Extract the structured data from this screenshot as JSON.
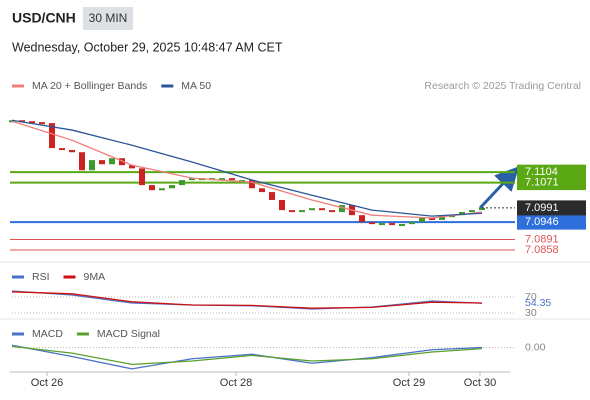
{
  "header": {
    "symbol": "USD/CNH",
    "interval": "30 MIN",
    "date": "Wednesday, October 29, 2025 10:48:47 AM CET"
  },
  "chart_data": [
    {
      "type": "candlestick",
      "source": "Research © 2025 Trading Central",
      "xlim": [
        0,
        47
      ],
      "ylim": [
        7.082,
        7.1332
      ],
      "up_color": "#3c9a2a",
      "down_color": "#cc2222",
      "series": [
        {
          "color": "#333333",
          "values": [
            7.1268,
            7.1265,
            7.1262,
            7.1259,
            7.118,
            7.1174,
            7.1167,
            7.111,
            7.1142,
            7.1129,
            7.1148,
            7.1126,
            7.1116,
            7.1063,
            7.1047,
            7.1053,
            7.1063,
            7.1079,
            7.1085,
            7.1085,
            7.1085,
            7.1085,
            7.1079,
            7.1079,
            7.1053,
            7.1041,
            7.1016,
            7.0984,
            7.0978,
            7.0984,
            7.099,
            7.0984,
            7.0978,
            7.1,
            7.0968,
            7.0946,
            7.094,
            7.0943,
            7.094,
            7.094,
            7.0946,
            7.0959,
            7.0953,
            7.0968,
            7.0968,
            7.0978,
            7.0984,
            7.0991
          ]
        },
        {
          "name": "MA 20 + Bollinger Bands",
          "color": "#f07c7c",
          "x": [
            0,
            6,
            12,
            18,
            24,
            30,
            36,
            42,
            47
          ],
          "values": [
            7.1265,
            7.1205,
            7.1126,
            7.1085,
            7.1072,
            7.1016,
            7.0968,
            7.0959,
            7.0978
          ]
        },
        {
          "name": "MA 50",
          "color": "#2a5599",
          "x": [
            0,
            6,
            12,
            18,
            24,
            30,
            36,
            42,
            47
          ],
          "values": [
            7.1268,
            7.1237,
            7.1189,
            7.1136,
            7.1079,
            7.1031,
            7.0984,
            7.0965,
            7.0974
          ]
        }
      ],
      "levels": [
        {
          "value": 7.1104,
          "color": "#59a814",
          "boxed": true
        },
        {
          "value": 7.1071,
          "color": "#59a814",
          "boxed": true
        },
        {
          "value": 7.0946,
          "color": "#2f6fdc",
          "boxed": true
        },
        {
          "value": 7.0891,
          "color": "#e05555",
          "boxed": false
        },
        {
          "value": 7.0858,
          "color": "#e05555",
          "boxed": false
        }
      ]
    },
    {
      "type": "line",
      "xlim": [
        0,
        47
      ],
      "ylim": [
        17.5,
        100
      ],
      "yticks": [
        70,
        30
      ],
      "series": [
        {
          "name": "RSI",
          "color": "#4a72c8",
          "x": [
            0,
            6,
            12,
            18,
            24,
            30,
            36,
            42,
            47
          ],
          "values": [
            85,
            75,
            55,
            50,
            48,
            40,
            45,
            60,
            54.35
          ]
        },
        {
          "name": "9MA",
          "color": "#cc1111",
          "x": [
            0,
            6,
            12,
            18,
            24,
            30,
            36,
            42,
            47
          ],
          "values": [
            83,
            78,
            58,
            50,
            49,
            42,
            44,
            57,
            55
          ]
        }
      ]
    },
    {
      "type": "line",
      "xlim": [
        0,
        47
      ],
      "ylim": [
        -0.002,
        0.002
      ],
      "yticks": [
        {
          "value": 0,
          "label": "0.00"
        }
      ],
      "xticks": [
        {
          "value": 3.5,
          "label": "Oct 26"
        },
        {
          "value": 22.4,
          "label": "Oct 28"
        },
        {
          "value": 39.7,
          "label": "Oct 29"
        },
        {
          "value": 46.8,
          "label": "Oct 30"
        }
      ],
      "series": [
        {
          "name": "MACD",
          "color": "#4a72c8",
          "x": [
            0,
            6,
            12,
            18,
            24,
            30,
            36,
            42,
            47
          ],
          "values": [
            0.0002,
            -0.0008,
            -0.0019,
            -0.001,
            -0.0006,
            -0.0014,
            -0.0009,
            -0.0002,
            0
          ]
        },
        {
          "name": "MACD Signal",
          "color": "#5aa02c",
          "x": [
            0,
            6,
            12,
            18,
            24,
            30,
            36,
            42,
            47
          ],
          "values": [
            0.0001,
            -0.0005,
            -0.0015,
            -0.0012,
            -0.0007,
            -0.0012,
            -0.001,
            -0.0004,
            -0.0001
          ]
        }
      ]
    }
  ]
}
